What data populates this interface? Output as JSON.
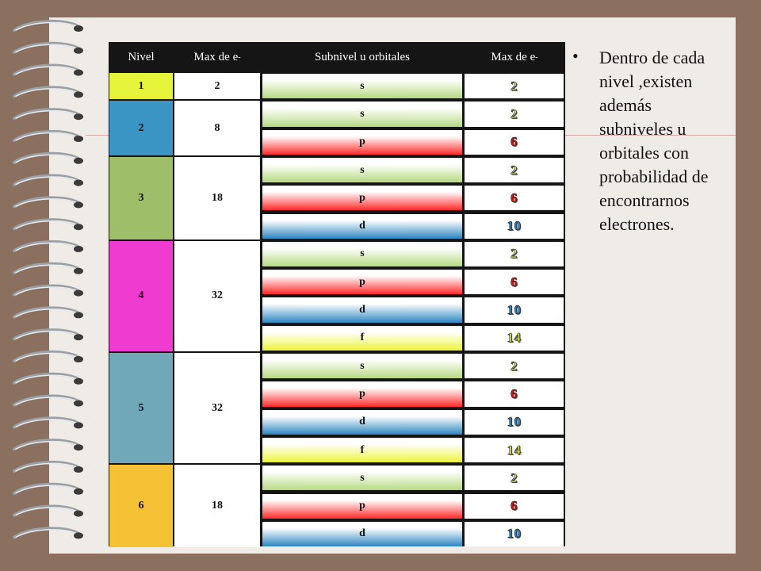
{
  "headers": [
    "Nivel",
    "Max de e",
    "Subnivel u orbitales",
    "Max de e"
  ],
  "superscript": "-",
  "levels": [
    {
      "nivel": "1",
      "max": "2",
      "color": "#e6f53b",
      "subs": [
        {
          "s": "s",
          "n": "2"
        }
      ]
    },
    {
      "nivel": "2",
      "max": "8",
      "color": "#3a95c5",
      "subs": [
        {
          "s": "s",
          "n": "2"
        },
        {
          "s": "p",
          "n": "6"
        }
      ]
    },
    {
      "nivel": "3",
      "max": "18",
      "color": "#9fbe6a",
      "subs": [
        {
          "s": "s",
          "n": "2"
        },
        {
          "s": "p",
          "n": "6"
        },
        {
          "s": "d",
          "n": "10"
        }
      ]
    },
    {
      "nivel": "4",
      "max": "32",
      "color": "#f03bd0",
      "subs": [
        {
          "s": "s",
          "n": "2"
        },
        {
          "s": "p",
          "n": "6"
        },
        {
          "s": "d",
          "n": "10"
        },
        {
          "s": "f",
          "n": "14"
        }
      ]
    },
    {
      "nivel": "5",
      "max": "32",
      "color": "#71a8b8",
      "subs": [
        {
          "s": "s",
          "n": "2"
        },
        {
          "s": "p",
          "n": "6"
        },
        {
          "s": "d",
          "n": "10"
        },
        {
          "s": "f",
          "n": "14"
        }
      ]
    },
    {
      "nivel": "6",
      "max": "18",
      "color": "#f5c236",
      "subs": [
        {
          "s": "s",
          "n": "2"
        },
        {
          "s": "p",
          "n": "6"
        },
        {
          "s": "d",
          "n": "10"
        }
      ]
    }
  ],
  "orbital_colors": {
    "s": {
      "gradient": [
        "#ffffff",
        "#b7d983"
      ],
      "number": "#c3e075"
    },
    "p": {
      "gradient": [
        "#ffffff",
        "#ff2a2a"
      ],
      "number": "#e01010"
    },
    "d": {
      "gradient": [
        "#ffffff",
        "#2d86c1"
      ],
      "number": "#2f82c0"
    },
    "f": {
      "gradient": [
        "#ffffff",
        "#ebf53a"
      ],
      "number": "#d9e62b"
    }
  },
  "bullet": {
    "symbol": "•",
    "text": "Dentro de cada nivel ,existen además subniveles u orbitales con probabilidad de encontrarnos electrones."
  }
}
